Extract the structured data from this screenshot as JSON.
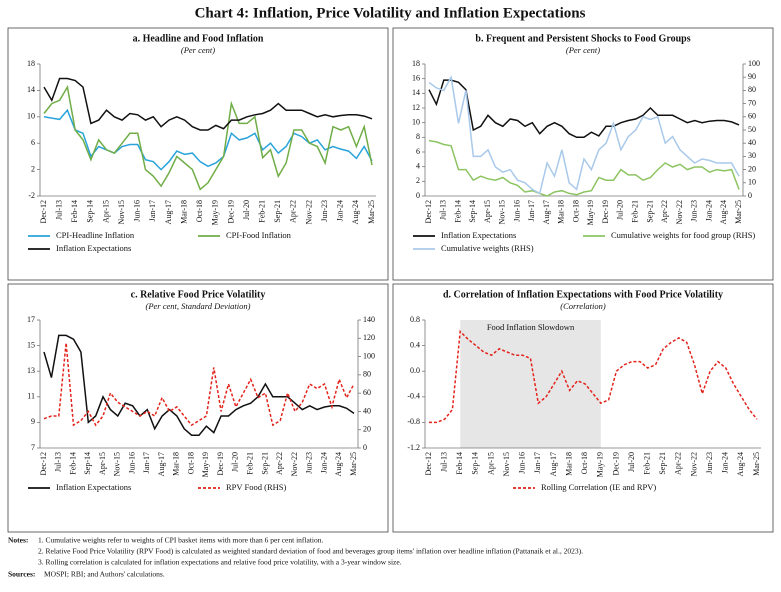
{
  "title": "Chart 4: Inflation, Price Volatility and Inflation Expectations",
  "chart_data": [
    {
      "type": "line",
      "title": "a. Headline and Food Inflation",
      "subtitle": "(Per cent)",
      "categories": [
        "Dec-12",
        null,
        "Jul-13",
        null,
        "Feb-14",
        null,
        "Sep-14",
        null,
        "Apr-15",
        null,
        "Nov-15",
        null,
        "Jun-16",
        null,
        "Jan-17",
        null,
        "Aug-17",
        null,
        "Mar-18",
        null,
        "Oct-18",
        null,
        "May-19",
        null,
        "Dec-19",
        null,
        "Jul-20",
        null,
        "Feb-21",
        null,
        "Sep-21",
        null,
        "Apr-22",
        null,
        "Nov-22",
        null,
        "Jun-23",
        null,
        "Jan-24",
        null,
        "Aug-24",
        null,
        "Mar-25"
      ],
      "ylim": [
        -2,
        18
      ],
      "yticks": [
        -2,
        2,
        6,
        10,
        14,
        18
      ],
      "legend": "bottom",
      "series": [
        {
          "name": "CPI-Headline Inflation",
          "color": "#29a3dc",
          "values": [
            10,
            9.8,
            9.6,
            11,
            8,
            7.5,
            4,
            5.5,
            5,
            4.5,
            5.5,
            5.8,
            5.8,
            3.5,
            3.2,
            2,
            3.2,
            4.8,
            4.3,
            4.5,
            3.2,
            2.5,
            3,
            4,
            7.5,
            6.5,
            6.8,
            7.5,
            5,
            6,
            4.5,
            5.5,
            7.5,
            7,
            6,
            6.5,
            5,
            5.5,
            5.1,
            4.8,
            3.7,
            5.5,
            3.3
          ]
        },
        {
          "name": "CPI-Food Inflation",
          "color": "#70ad47",
          "values": [
            10.5,
            12,
            12.5,
            14.5,
            8,
            6.5,
            3.5,
            6.5,
            5,
            4.5,
            6,
            7.5,
            7.5,
            2,
            1,
            -0.5,
            1.5,
            4,
            3,
            2,
            -1,
            0,
            2,
            4,
            12,
            9,
            9,
            10,
            3.8,
            5,
            1,
            3,
            8,
            8,
            6,
            5.5,
            3,
            8.5,
            8,
            8.5,
            5.5,
            8.5,
            2.7
          ]
        },
        {
          "name": "Inflation Expectations",
          "color": "#111111",
          "values": [
            14.5,
            12.5,
            15.8,
            15.8,
            15.5,
            14.5,
            9,
            9.5,
            11,
            10,
            9.5,
            10.5,
            10.3,
            9.5,
            10,
            8.5,
            9.5,
            10,
            9.5,
            8.5,
            8,
            8,
            8.7,
            8.2,
            9.5,
            9.5,
            10,
            10.3,
            10.5,
            11,
            12,
            11,
            11,
            11,
            10.5,
            10,
            10.3,
            10,
            10.2,
            10.3,
            10.3,
            10.1,
            9.7
          ]
        }
      ]
    },
    {
      "type": "line",
      "title": "b. Frequent and Persistent Shocks to Food Groups",
      "subtitle": "(Per cent)",
      "categories": [
        "Dec-12",
        null,
        "Jul-13",
        null,
        "Feb-14",
        null,
        "Sep-14",
        null,
        "Apr-15",
        null,
        "Nov-15",
        null,
        "Jun-16",
        null,
        "Jan-17",
        null,
        "Aug-17",
        null,
        "Mar-18",
        null,
        "Oct-18",
        null,
        "May-19",
        null,
        "Dec-19",
        null,
        "Jul-20",
        null,
        "Feb-21",
        null,
        "Sep-21",
        null,
        "Apr-22",
        null,
        "Nov-22",
        null,
        "Jun-23",
        null,
        "Jan-24",
        null,
        "Aug-24",
        null,
        "Mar-25"
      ],
      "ylim": [
        0,
        18
      ],
      "yticks": [
        0,
        2,
        4,
        6,
        8,
        10,
        12,
        14,
        16,
        18
      ],
      "y2lim": [
        0,
        100
      ],
      "y2ticks": [
        0,
        10,
        20,
        30,
        40,
        50,
        60,
        70,
        80,
        90,
        100
      ],
      "legend": "bottom",
      "series": [
        {
          "name": "Inflation Expectations",
          "color": "#111111",
          "values": [
            14.5,
            12.5,
            15.8,
            15.8,
            15.5,
            14.5,
            9,
            9.5,
            11,
            10,
            9.5,
            10.5,
            10.3,
            9.5,
            10,
            8.5,
            9.5,
            10,
            9.5,
            8.5,
            8,
            8,
            8.7,
            8.2,
            9.5,
            9.5,
            10,
            10.3,
            10.5,
            11,
            12,
            11,
            11,
            11,
            10.5,
            10,
            10.3,
            10,
            10.2,
            10.3,
            10.3,
            10.1,
            9.7
          ]
        },
        {
          "name": "Cumulative weights for food group (RHS)",
          "color": "#8dc462",
          "axis": "y2",
          "values": [
            42,
            41,
            39,
            38,
            20,
            20,
            12,
            15,
            13,
            12,
            14,
            10,
            8,
            3,
            4,
            2,
            0,
            3,
            4,
            2,
            1,
            3,
            4,
            14,
            12,
            12,
            20,
            16,
            16,
            12,
            14,
            20,
            25,
            22,
            24,
            20,
            22,
            22,
            18,
            20,
            19,
            20,
            5
          ]
        },
        {
          "name": "Cumulative weights (RHS)",
          "color": "#a9c9ea",
          "axis": "y2",
          "values": [
            86,
            82,
            80,
            90,
            55,
            80,
            30,
            30,
            35,
            22,
            18,
            20,
            12,
            10,
            5,
            2,
            25,
            15,
            35,
            10,
            5,
            28,
            20,
            35,
            40,
            55,
            35,
            45,
            50,
            60,
            58,
            60,
            40,
            45,
            35,
            30,
            25,
            28,
            27,
            25,
            25,
            25,
            15
          ]
        }
      ]
    },
    {
      "type": "line",
      "title": "c. Relative Food Price Volatility",
      "subtitle": "(Per cent, Standard Deviation)",
      "categories": [
        "Dec-12",
        null,
        "Jul-13",
        null,
        "Feb-14",
        null,
        "Sep-14",
        null,
        "Apr-15",
        null,
        "Nov-15",
        null,
        "Jun-16",
        null,
        "Jan-17",
        null,
        "Aug-17",
        null,
        "Mar-18",
        null,
        "Oct-18",
        null,
        "May-19",
        null,
        "Dec-19",
        null,
        "Jul-20",
        null,
        "Feb-21",
        null,
        "Sep-21",
        null,
        "Apr-22",
        null,
        "Nov-22",
        null,
        "Jun-23",
        null,
        "Jan-24",
        null,
        "Aug-24",
        null,
        "Mar-25"
      ],
      "ylim": [
        7,
        17
      ],
      "yticks": [
        7,
        9,
        11,
        13,
        15,
        17
      ],
      "y2lim": [
        0,
        140
      ],
      "y2ticks": [
        0,
        20,
        40,
        60,
        80,
        100,
        120,
        140
      ],
      "legend": "bottom",
      "series": [
        {
          "name": "Inflation Expectations",
          "color": "#111111",
          "values": [
            14.5,
            12.5,
            15.8,
            15.8,
            15.5,
            14.5,
            9,
            9.5,
            11,
            10,
            9.5,
            10.5,
            10.3,
            9.5,
            10,
            8.5,
            9.5,
            10,
            9.5,
            8.5,
            8,
            8,
            8.7,
            8.2,
            9.5,
            9.5,
            10,
            10.3,
            10.5,
            11,
            12,
            11,
            11,
            11,
            10.5,
            10,
            10.3,
            10,
            10.2,
            10.3,
            10.3,
            10.1,
            9.7
          ]
        },
        {
          "name": "RPV Food (RHS)",
          "color": "#e3231b",
          "axis": "y2",
          "dash": true,
          "values": [
            32,
            35,
            35,
            115,
            25,
            30,
            40,
            25,
            35,
            60,
            50,
            45,
            40,
            35,
            40,
            35,
            55,
            40,
            45,
            35,
            25,
            30,
            35,
            88,
            40,
            70,
            45,
            60,
            75,
            55,
            60,
            25,
            30,
            60,
            40,
            50,
            70,
            65,
            70,
            45,
            75,
            55,
            70
          ]
        }
      ]
    },
    {
      "type": "line",
      "title": "d. Correlation of Inflation Expectations with Food Price Volatility",
      "subtitle": "(Correlation)",
      "categories": [
        "Dec-12",
        null,
        "Jul-13",
        null,
        "Feb-14",
        null,
        "Sep-14",
        null,
        "Apr-15",
        null,
        "Nov-15",
        null,
        "Jun-16",
        null,
        "Jan-17",
        null,
        "Aug-17",
        null,
        "Mar-18",
        null,
        "Oct-18",
        null,
        "May-19",
        null,
        "Dec-19",
        null,
        "Jul-20",
        null,
        "Feb-21",
        null,
        "Sep-21",
        null,
        "Apr-22",
        null,
        "Nov-22",
        null,
        "Jun-23",
        null,
        "Jan-24",
        null,
        "Aug-24",
        null,
        "Mar-25"
      ],
      "ylim": [
        -1.2,
        0.8
      ],
      "yticks": [
        -1.2,
        -0.8,
        -0.4,
        {
          "value": 0,
          "label": "0.0"
        },
        0.4,
        0.8
      ],
      "legend": "bottom",
      "shade": {
        "label": "Food Inflation Slowdown",
        "from": "Feb-14",
        "to": "May-19",
        "color": "#e6e6e6"
      },
      "series": [
        {
          "name": "Rolling Correlation (IE and RPV)",
          "color": "#e3231b",
          "dash": true,
          "values": [
            -0.8,
            -0.8,
            -0.75,
            -0.6,
            0.62,
            0.5,
            0.4,
            0.3,
            0.25,
            0.35,
            0.3,
            0.25,
            0.25,
            0.2,
            -0.5,
            -0.4,
            -0.2,
            0.0,
            -0.3,
            -0.15,
            -0.2,
            -0.35,
            -0.5,
            -0.45,
            0.0,
            0.1,
            0.15,
            0.15,
            0.05,
            0.1,
            0.35,
            0.45,
            0.52,
            0.45,
            0.1,
            -0.35,
            0.0,
            0.15,
            0.05,
            -0.2,
            -0.4,
            -0.6,
            -0.75
          ]
        }
      ]
    }
  ],
  "notes": {
    "label": "Notes:",
    "items": [
      "1.  Cumulative weights refer to weights of CPI basket items with more than 6 per cent inflation.",
      "2.  Relative Food Price Volatility (RPV Food) is calculated as weighted standard deviation of food and beverages group items' inflation over headline inflation (Pattanaik et al., 2023).",
      "3.  Rolling correlation is calculated for inflation expectations and relative food price volatility, with a 3-year window size."
    ]
  },
  "sources": {
    "label": "Sources:",
    "text": "MOSPI; RBI; and Authors' calculations."
  }
}
